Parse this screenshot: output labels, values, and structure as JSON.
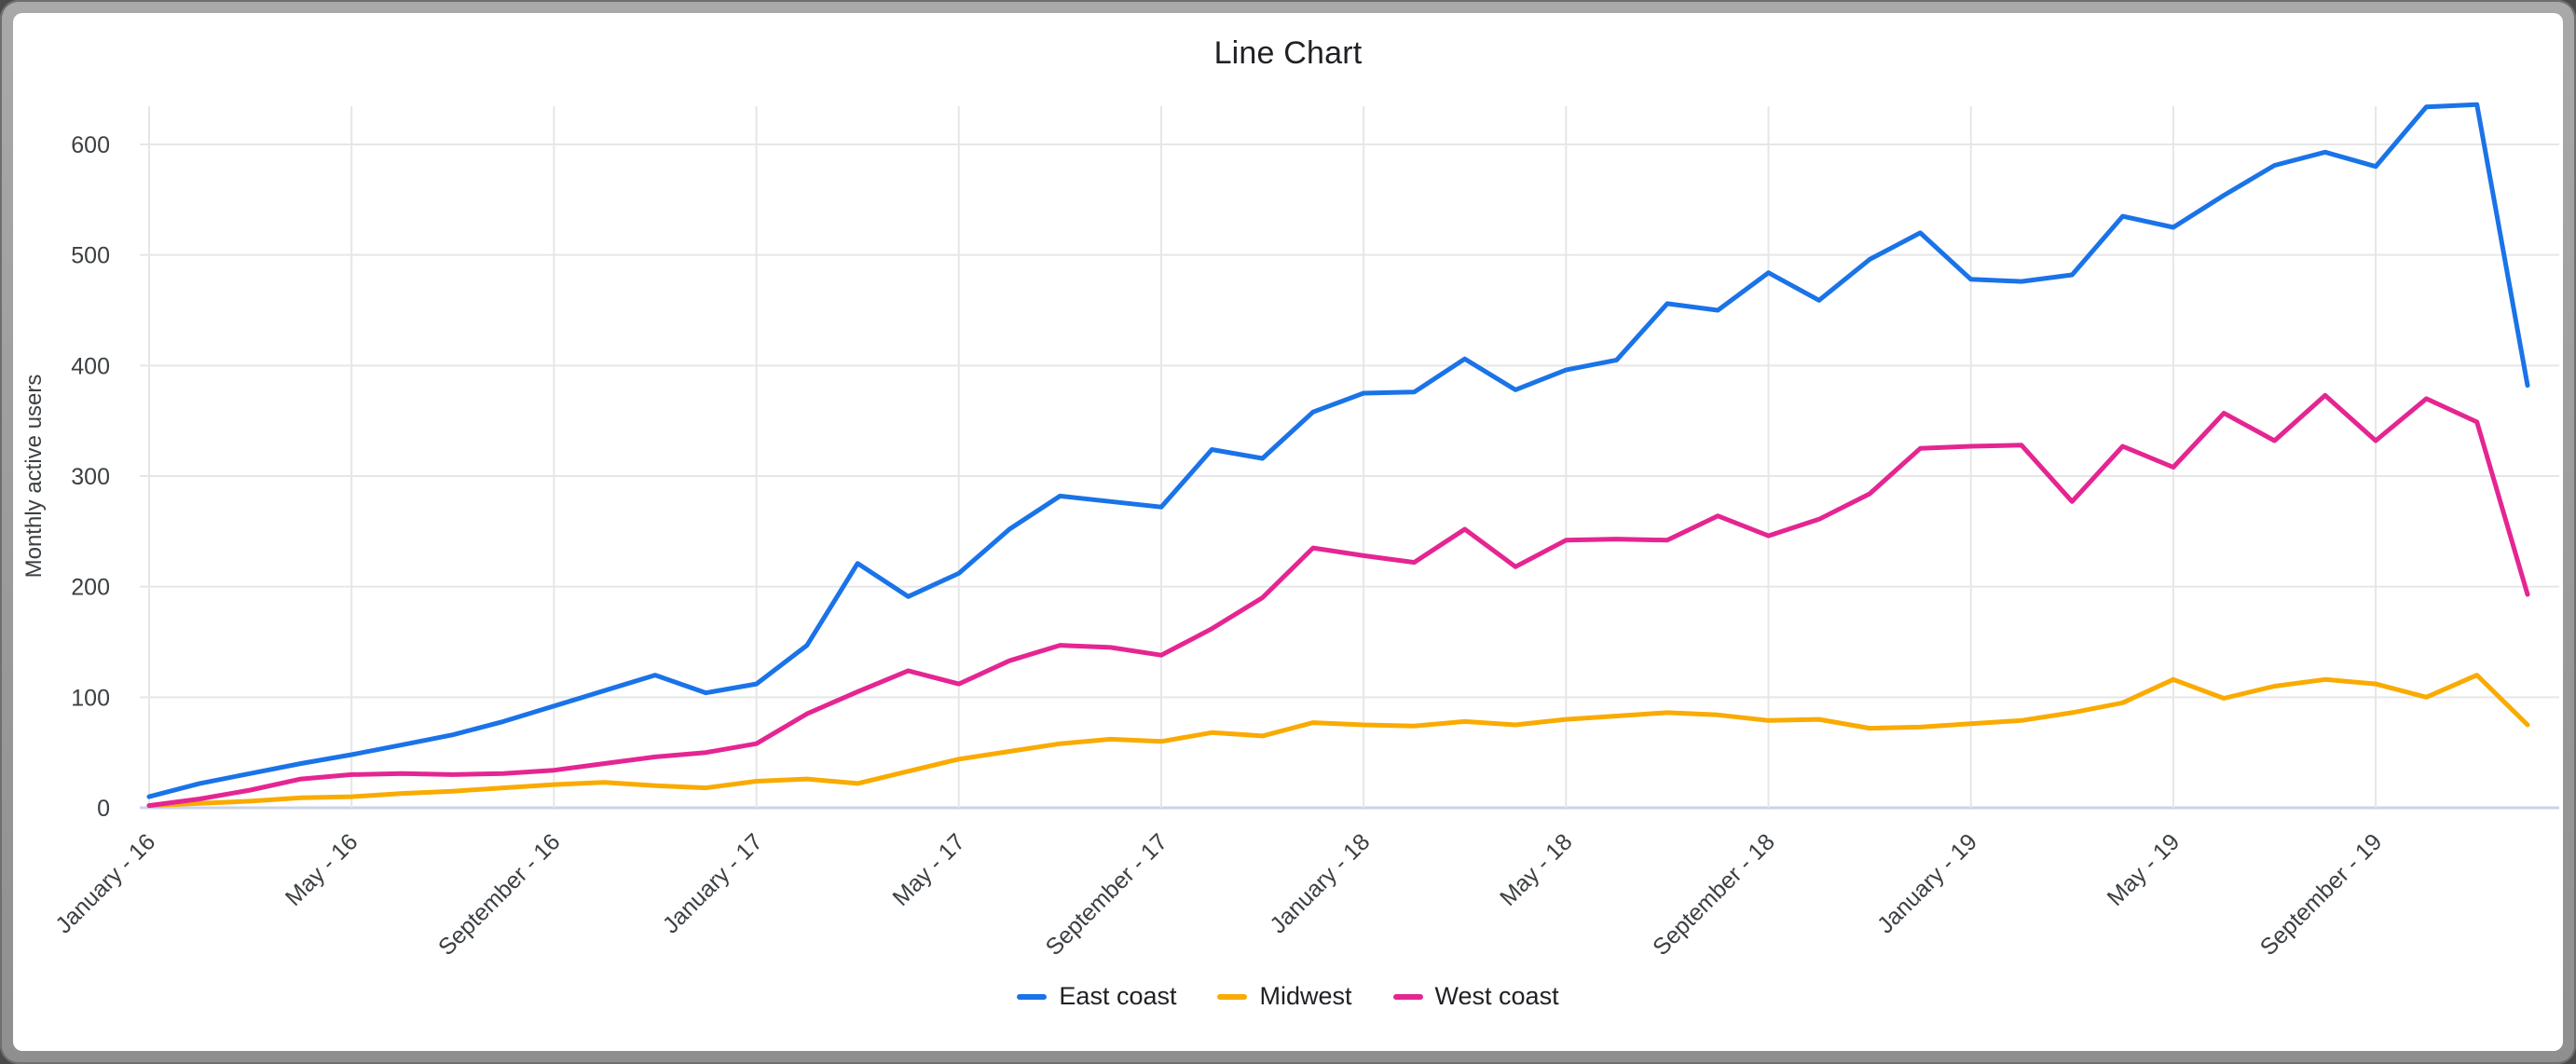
{
  "window": {
    "frame_color": "#8f8f8f",
    "panel_color": "#ffffff"
  },
  "chart_data": {
    "type": "line",
    "title": "Line Chart",
    "xlabel": "",
    "ylabel": "Monthly active users",
    "ylim": [
      0,
      600
    ],
    "yticks": [
      0,
      100,
      200,
      300,
      400,
      500,
      600
    ],
    "grid": true,
    "legend_position": "bottom",
    "n_points": 48,
    "x_tick_every": 4,
    "x_tick_labels": [
      "January - 16",
      "May - 16",
      "September - 16",
      "January - 17",
      "May - 17",
      "September - 17",
      "January - 18",
      "May - 18",
      "September - 18",
      "January - 19",
      "May - 19",
      "September - 19"
    ],
    "series": [
      {
        "name": "East coast",
        "color": "#1a73e8",
        "values": [
          10,
          22,
          31,
          40,
          48,
          57,
          66,
          78,
          92,
          106,
          120,
          104,
          112,
          147,
          221,
          191,
          212,
          252,
          282,
          277,
          272,
          324,
          316,
          358,
          375,
          376,
          406,
          378,
          396,
          405,
          456,
          450,
          484,
          459,
          496,
          520,
          478,
          476,
          482,
          535,
          525,
          554,
          581,
          593,
          580,
          634,
          636,
          382
        ]
      },
      {
        "name": "Midwest",
        "color": "#f9ab00",
        "values": [
          2,
          4,
          6,
          9,
          10,
          13,
          15,
          18,
          21,
          23,
          20,
          18,
          24,
          26,
          22,
          33,
          44,
          51,
          58,
          62,
          60,
          68,
          65,
          77,
          75,
          74,
          78,
          75,
          80,
          83,
          86,
          84,
          79,
          80,
          72,
          73,
          76,
          79,
          86,
          95,
          116,
          99,
          110,
          116,
          112,
          100,
          120,
          75
        ]
      },
      {
        "name": "West coast",
        "color": "#e52592",
        "values": [
          2,
          8,
          16,
          26,
          30,
          31,
          30,
          31,
          34,
          40,
          46,
          50,
          58,
          85,
          105,
          124,
          112,
          133,
          147,
          145,
          138,
          162,
          190,
          235,
          228,
          222,
          252,
          218,
          242,
          243,
          242,
          264,
          246,
          261,
          284,
          325,
          327,
          328,
          277,
          327,
          308,
          357,
          332,
          373,
          332,
          370,
          349,
          193
        ]
      }
    ],
    "style": {
      "grid_color": "#e6e6e6",
      "baseline_color": "#c9d3e8",
      "tick_label_color": "#3c4043",
      "title_color": "#202124",
      "line_width": 5
    }
  }
}
